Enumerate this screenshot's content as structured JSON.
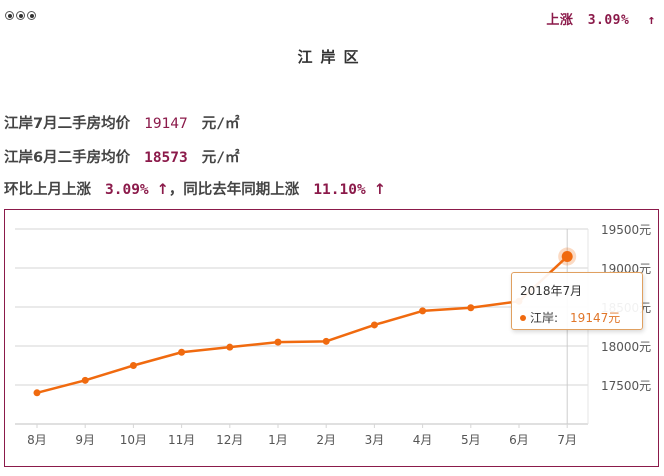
{
  "header": {
    "dots_icon": "three-radio-dots-icon",
    "change_label": "上涨",
    "change_value": "3.09%",
    "change_arrow": "↑"
  },
  "title": "江岸区",
  "stats": {
    "line1": {
      "label": "江岸7月二手房均价",
      "value": "19147",
      "unit": "元/㎡"
    },
    "line2": {
      "label": "江岸6月二手房均价",
      "value": "18573",
      "unit": "元/㎡"
    },
    "line3": {
      "mom_label": "环比上月上涨",
      "mom_value": "3.09%",
      "arrow": "↑",
      "yoy_label": "，同比去年同期上涨",
      "yoy_value": "11.10%",
      "arrow2": "↑"
    }
  },
  "colors": {
    "accent": "#8b1a4a",
    "line": "#f06a0f",
    "grid": "#dddddd"
  },
  "tooltip": {
    "date": "2018年7月",
    "series": "江岸:",
    "value": "19147元"
  },
  "chart_data": {
    "type": "line",
    "title": "",
    "xlabel": "",
    "ylabel": "",
    "categories": [
      "8月",
      "9月",
      "10月",
      "11月",
      "12月",
      "1月",
      "2月",
      "3月",
      "4月",
      "5月",
      "6月",
      "7月"
    ],
    "series": [
      {
        "name": "江岸",
        "values": [
          17400,
          17560,
          17750,
          17920,
          17985,
          18050,
          18060,
          18270,
          18450,
          18490,
          18573,
          19147
        ]
      }
    ],
    "y_ticks": [
      "17500元",
      "18000元",
      "18500元",
      "19000元",
      "19500元"
    ],
    "ylim": [
      17000,
      19500
    ],
    "grid": true,
    "legend": "none",
    "highlighted_point": {
      "category": "7月",
      "label": "2018年7月",
      "value": 19147
    }
  }
}
